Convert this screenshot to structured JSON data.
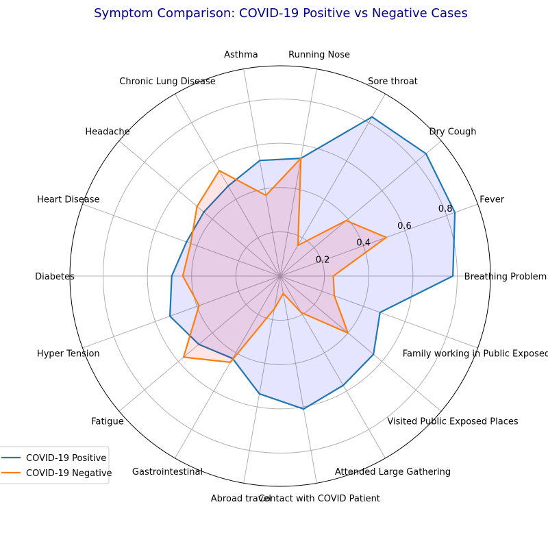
{
  "chart_data": {
    "type": "radar",
    "title": "Symptom Comparison: COVID-19 Positive vs Negative Cases",
    "categories": [
      "Breathing Problem",
      "Fever",
      "Dry Cough",
      "Sore throat",
      "Running Nose",
      "Asthma",
      "Chronic Lung Disease",
      "Headache",
      "Heart Disease",
      "Diabetes",
      "Hyper Tension",
      "Fatigue",
      "Gastrointestinal",
      "Abroad travel",
      "Contact with COVID Patient",
      "Attended Large Gathering",
      "Visited Public Exposed Places",
      "Family working in Public Exposed Places"
    ],
    "series": [
      {
        "name": "COVID-19 Positive",
        "color": "#1f77b4",
        "fill": "#0000ff",
        "values": [
          0.78,
          0.84,
          0.86,
          0.83,
          0.54,
          0.53,
          0.47,
          0.45,
          0.45,
          0.49,
          0.53,
          0.48,
          0.43,
          0.54,
          0.61,
          0.57,
          0.55,
          0.48
        ]
      },
      {
        "name": "COVID-19 Negative",
        "color": "#ff7f0e",
        "fill": "#ff0000",
        "values": [
          0.24,
          0.51,
          0.39,
          0.16,
          0.54,
          0.37,
          0.55,
          0.49,
          0.43,
          0.44,
          0.39,
          0.57,
          0.45,
          0.15,
          0.08,
          0.19,
          0.4,
          0.26
        ]
      }
    ],
    "rticks": [
      "0.2",
      "0.4",
      "0.6",
      "0.8"
    ],
    "rlim": [
      0,
      0.95
    ],
    "grid": true,
    "legend_position": "lower-left"
  }
}
